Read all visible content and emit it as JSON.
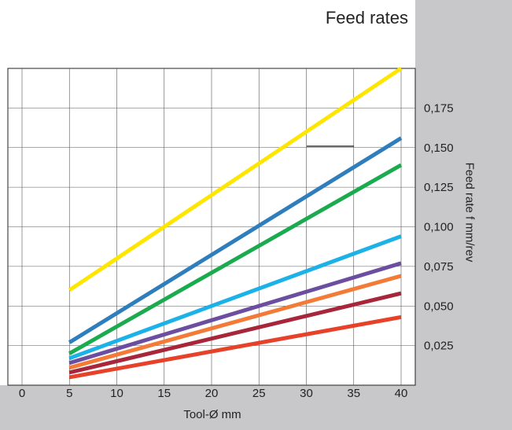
{
  "chart_data": {
    "type": "line",
    "title": "Feed rates",
    "xlabel": "Tool-Ø mm",
    "ylabel": "Feed rate f mm/rev",
    "xlim": [
      0,
      40
    ],
    "ylim": [
      0,
      0.2
    ],
    "grid": true,
    "legend": "none",
    "x_ticks": [
      "0",
      "5",
      "10",
      "15",
      "20",
      "25",
      "30",
      "35",
      "40"
    ],
    "y_ticks": [
      "0,025",
      "0,050",
      "0,075",
      "0,100",
      "0,125",
      "0,150",
      "0,175"
    ],
    "x": [
      5,
      40
    ],
    "series": [
      {
        "color": "#ffe600",
        "values": [
          0.06,
          0.2
        ]
      },
      {
        "color": "#2e7dbd",
        "values": [
          0.027,
          0.156
        ]
      },
      {
        "color": "#1aab4f",
        "values": [
          0.02,
          0.139
        ]
      },
      {
        "color": "#1cb2e8",
        "values": [
          0.017,
          0.094
        ]
      },
      {
        "color": "#6b4ea0",
        "values": [
          0.014,
          0.077
        ]
      },
      {
        "color": "#f47a37",
        "values": [
          0.011,
          0.069
        ]
      },
      {
        "color": "#a8263a",
        "values": [
          0.008,
          0.058
        ]
      },
      {
        "color": "#e8412a",
        "values": [
          0.005,
          0.043
        ]
      }
    ]
  }
}
